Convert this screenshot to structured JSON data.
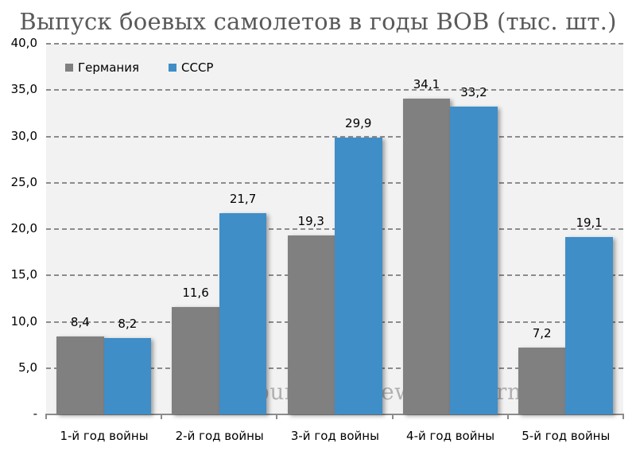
{
  "chart_data": {
    "type": "bar",
    "title": "Выпуск боевых самолетов в годы ВОВ (тыс. шт.)",
    "xlabel": "",
    "ylabel": "",
    "categories": [
      "1-й год войны",
      "2-й год войны",
      "3-й год войны",
      "4-й год войны",
      "5-й год войны"
    ],
    "series": [
      {
        "name": "Германия",
        "color": "#808080",
        "values": [
          8.4,
          11.6,
          19.3,
          34.1,
          7.2
        ]
      },
      {
        "name": "СССР",
        "color": "#3f8ec8",
        "values": [
          8.2,
          21.7,
          29.9,
          33.2,
          19.1
        ]
      }
    ],
    "value_labels": {
      "Германия": [
        "8,4",
        "11,6",
        "19,3",
        "34,1",
        "7,2"
      ],
      "СССР": [
        "8,2",
        "21,7",
        "29,9",
        "33,2",
        "19,1"
      ]
    },
    "ylim": [
      0,
      40
    ],
    "yticks": [
      0,
      5,
      10,
      15,
      20,
      25,
      30,
      35,
      40
    ],
    "ytick_labels": [
      "-",
      "5,0",
      "10,0",
      "15,0",
      "20,0",
      "25,0",
      "30,0",
      "35,0",
      "40,0"
    ],
    "grid": true,
    "legend_position": "top-left inside"
  },
  "watermark": "© burckina-new.livejournal.com"
}
